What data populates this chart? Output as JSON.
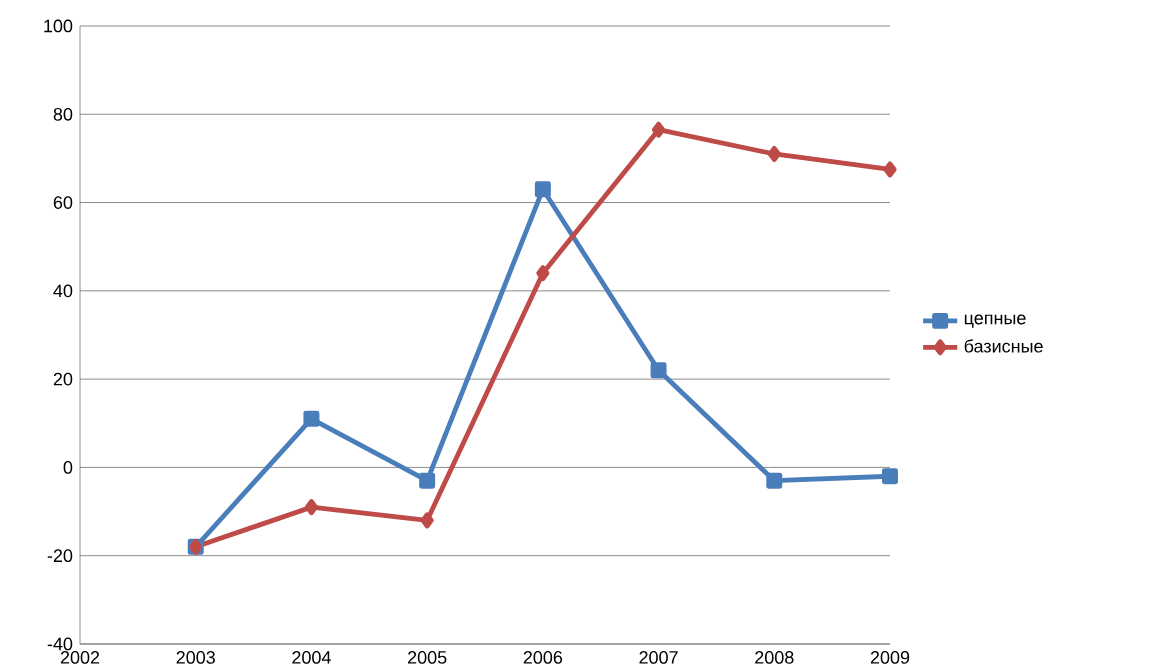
{
  "chart_data": {
    "type": "line",
    "x": [
      2003,
      2004,
      2005,
      2006,
      2007,
      2008,
      2009
    ],
    "series": [
      {
        "name": "цепные",
        "color": "#4a7ebb",
        "marker": "square",
        "values": [
          -18,
          11,
          -3,
          63,
          22,
          -3,
          -2
        ]
      },
      {
        "name": "базисные",
        "color": "#be4b48",
        "marker": "diamond",
        "values": [
          -18,
          -9,
          -12,
          44,
          76.5,
          71,
          67.5
        ]
      }
    ],
    "xlim": [
      2002,
      2009
    ],
    "xticks": [
      2002,
      2003,
      2004,
      2005,
      2006,
      2007,
      2008,
      2009
    ],
    "ylim": [
      -40,
      100
    ],
    "yticks": [
      -40,
      -20,
      0,
      20,
      40,
      60,
      80,
      100
    ],
    "grid": "y",
    "legend": "right",
    "line_style": "solid"
  }
}
